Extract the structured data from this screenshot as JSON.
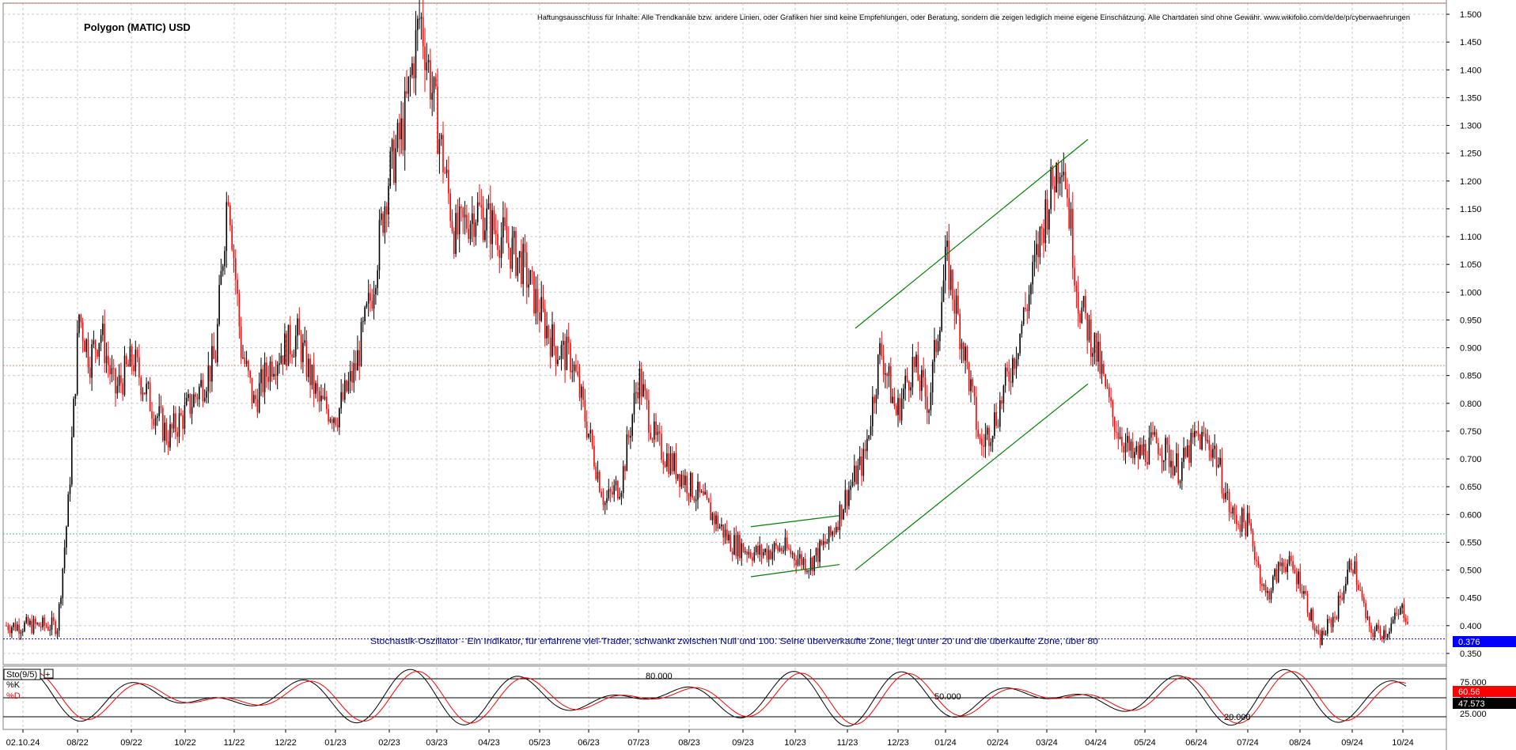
{
  "chart_data": [
    {
      "type": "candlestick",
      "title": "Polygon (MATIC) USD",
      "disclaimer": "Haftungsausschluss für Inhalte: Alle Trendkanäle bzw. andere Linien, oder Grafiken hier sind keine Empfehlungen, oder Beratung, sondern die zeigen lediglich meine eigene Einschätzung. Alle Chartdaten sind ohne Gewähr. www.wikifolio.com/de/de/p/cyberwaehrungen",
      "annotation": "Stochastik-Oszillator - Ein Indikator, für erfahrene viel-Trader, schwankt zwischen Null und 100. Seine überverkaufte Zone, liegt unter 20 und die überkaufte Zone, über 80",
      "ylim": [
        0.33,
        1.52
      ],
      "y_ticks": [
        "1.500",
        "1.450",
        "1.400",
        "1.350",
        "1.300",
        "1.250",
        "1.200",
        "1.150",
        "1.100",
        "1.050",
        "1.000",
        "0.950",
        "0.900",
        "0.850",
        "0.800",
        "0.750",
        "0.700",
        "0.650",
        "0.600",
        "0.550",
        "0.500",
        "0.450",
        "0.400",
        "0.350"
      ],
      "x_ticks": [
        "02.10.24",
        "08/22",
        "09/22",
        "10/22",
        "11/22",
        "12/22",
        "01/23",
        "02/23",
        "03/23",
        "04/23",
        "05/23",
        "06/23",
        "07/23",
        "08/23",
        "09/23",
        "10/23",
        "11/23",
        "12/23",
        "01/24",
        "02/24",
        "03/24",
        "04/24",
        "05/24",
        "06/24",
        "07/24",
        "08/24",
        "09/24",
        "10/24"
      ],
      "close_path": [
        [
          "08/22",
          0.4
        ],
        [
          "08/22",
          0.62
        ],
        [
          "08/22",
          0.96
        ],
        [
          "08/22",
          0.88
        ],
        [
          "08/22",
          0.93
        ],
        [
          "09/22",
          0.82
        ],
        [
          "09/22",
          0.88
        ],
        [
          "09/22",
          0.8
        ],
        [
          "10/22",
          0.74
        ],
        [
          "10/22",
          0.78
        ],
        [
          "10/22",
          0.83
        ],
        [
          "11/22",
          0.88
        ],
        [
          "11/22",
          1.2
        ],
        [
          "11/22",
          0.9
        ],
        [
          "11/22",
          0.8
        ],
        [
          "12/22",
          0.88
        ],
        [
          "12/22",
          0.92
        ],
        [
          "01/23",
          0.8
        ],
        [
          "01/23",
          0.78
        ],
        [
          "01/23",
          0.86
        ],
        [
          "02/23",
          1.0
        ],
        [
          "02/23",
          1.2
        ],
        [
          "02/23",
          1.3
        ],
        [
          "03/23",
          1.5
        ],
        [
          "03/23",
          1.3
        ],
        [
          "03/23",
          1.1
        ],
        [
          "04/23",
          1.15
        ],
        [
          "04/23",
          1.1
        ],
        [
          "05/23",
          1.05
        ],
        [
          "05/23",
          0.97
        ],
        [
          "05/23",
          0.9
        ],
        [
          "06/23",
          0.88
        ],
        [
          "06/23",
          0.75
        ],
        [
          "06/23",
          0.62
        ],
        [
          "07/23",
          0.66
        ],
        [
          "07/23",
          0.85
        ],
        [
          "07/23",
          0.73
        ],
        [
          "08/23",
          0.68
        ],
        [
          "08/23",
          0.62
        ],
        [
          "09/23",
          0.55
        ],
        [
          "09/23",
          0.53
        ],
        [
          "10/23",
          0.54
        ],
        [
          "10/23",
          0.51
        ],
        [
          "11/23",
          0.56
        ],
        [
          "11/23",
          0.64
        ],
        [
          "11/23",
          0.7
        ],
        [
          "12/23",
          0.9
        ],
        [
          "12/23",
          0.78
        ],
        [
          "12/23",
          0.87
        ],
        [
          "01/24",
          0.8
        ],
        [
          "01/24",
          1.06
        ],
        [
          "01/24",
          0.9
        ],
        [
          "02/24",
          0.72
        ],
        [
          "02/24",
          0.78
        ],
        [
          "02/24",
          0.88
        ],
        [
          "03/24",
          1.0
        ],
        [
          "03/24",
          1.15
        ],
        [
          "03/24",
          1.26
        ],
        [
          "04/24",
          0.98
        ],
        [
          "04/24",
          0.9
        ],
        [
          "04/24",
          0.78
        ],
        [
          "05/24",
          0.7
        ],
        [
          "05/24",
          0.73
        ],
        [
          "06/24",
          0.68
        ],
        [
          "06/24",
          0.74
        ],
        [
          "06/24",
          0.72
        ],
        [
          "07/24",
          0.6
        ],
        [
          "07/24",
          0.58
        ],
        [
          "07/24",
          0.45
        ],
        [
          "08/24",
          0.52
        ],
        [
          "08/24",
          0.48
        ],
        [
          "08/24",
          0.37
        ],
        [
          "09/24",
          0.42
        ],
        [
          "09/24",
          0.52
        ],
        [
          "09/24",
          0.39
        ],
        [
          "10/24",
          0.39
        ],
        [
          "10/24",
          0.43
        ],
        [
          "10/24",
          0.376
        ]
      ],
      "trend_lines": [
        {
          "from": [
            "11/23",
            0.935
          ],
          "to": [
            "04/24",
            1.275
          ],
          "color": "#008000"
        },
        {
          "from": [
            "11/23",
            0.5
          ],
          "to": [
            "04/24",
            0.835
          ],
          "color": "#008000"
        },
        {
          "from": [
            "09/23",
            0.578
          ],
          "to": [
            "11/23",
            0.598
          ],
          "color": "#008000"
        },
        {
          "from": [
            "09/23",
            0.488
          ],
          "to": [
            "11/23",
            0.51
          ],
          "color": "#008000"
        }
      ],
      "h_lines": [
        {
          "value": 0.868,
          "color": "#e08080"
        },
        {
          "value": 0.565,
          "color": "#40c0a0"
        },
        {
          "value": 0.376,
          "color": "#0000cc"
        },
        {
          "value": 1.52,
          "color": "#cc4040"
        }
      ],
      "last_price": "0.376",
      "colors": {
        "up": "#000000",
        "down": "#ff0000",
        "badge": "#0000ff"
      }
    },
    {
      "type": "line",
      "title": "Sto(9/5)",
      "series": [
        {
          "name": "%K",
          "color": "#000000",
          "last": "47.573"
        },
        {
          "name": "%D",
          "color": "#ff0000",
          "last": "60.56"
        }
      ],
      "levels": [
        "80.000",
        "50.000",
        "20.000"
      ],
      "y_ticks": [
        "75.000",
        "50.000",
        "25.000"
      ],
      "ylim": [
        0,
        100
      ]
    }
  ]
}
